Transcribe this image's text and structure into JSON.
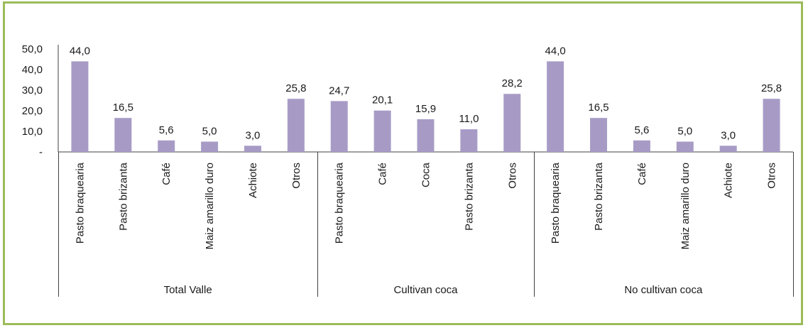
{
  "chart_data": {
    "type": "bar",
    "color": "#a79bc6",
    "ylim": [
      0,
      50
    ],
    "yticks": [
      {
        "value": 0,
        "label": "-"
      },
      {
        "value": 10,
        "label": "10,0"
      },
      {
        "value": 20,
        "label": "20,0"
      },
      {
        "value": 30,
        "label": "30,0"
      },
      {
        "value": 40,
        "label": "40,0"
      },
      {
        "value": 50,
        "label": "50,0"
      }
    ],
    "groups": [
      {
        "name": "Total Valle",
        "categories": [
          "Pasto braquearia",
          "Pasto brizanta",
          "Café",
          "Maiz amarillo duro",
          "Achiote",
          "Otros"
        ],
        "values": [
          44.0,
          16.5,
          5.6,
          5.0,
          3.0,
          25.8
        ],
        "labels": [
          "44,0",
          "16,5",
          "5,6",
          "5,0",
          "3,0",
          "25,8"
        ]
      },
      {
        "name": "Cultivan coca",
        "categories": [
          "Pasto braquearia",
          "Café",
          "Coca",
          "Pasto brizanta",
          "Otros"
        ],
        "values": [
          24.7,
          20.1,
          15.9,
          11.0,
          28.2
        ],
        "labels": [
          "24,7",
          "20,1",
          "15,9",
          "11,0",
          "28,2"
        ]
      },
      {
        "name": "No cultivan coca",
        "categories": [
          "Pasto braquearia",
          "Pasto brizanta",
          "Café",
          "Maiz amarillo duro",
          "Achiote",
          "Otros"
        ],
        "values": [
          44.0,
          16.5,
          5.6,
          5.0,
          3.0,
          25.8
        ],
        "labels": [
          "44,0",
          "16,5",
          "5,6",
          "5,0",
          "3,0",
          "25,8"
        ]
      }
    ]
  }
}
